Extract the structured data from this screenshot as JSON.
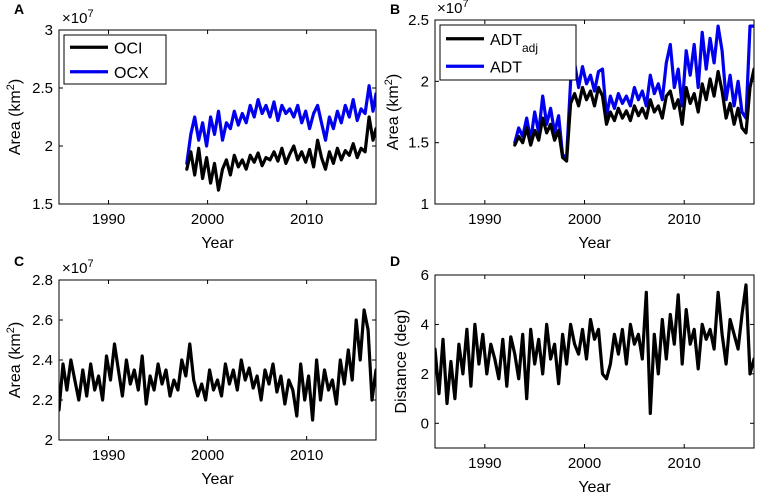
{
  "chart_data": [
    {
      "panel": "A",
      "type": "line",
      "xlabel": "Year",
      "ylabel": "Area (km",
      "ylabel_sup": "2",
      "ylabel_close": ")",
      "multiplier": "×10",
      "multiplier_exp": "7",
      "xlim": [
        1985,
        2017
      ],
      "ylim": [
        1.5,
        3
      ],
      "xticks": [
        1990,
        2000,
        2010
      ],
      "yticks": [
        1.5,
        2,
        2.5,
        3
      ],
      "ytick_labels": [
        "1.5",
        "2",
        "2.5",
        "3"
      ],
      "series": [
        {
          "name": "OCI",
          "color": "#000000",
          "x": [
            1997.9,
            1998.3,
            1998.7,
            1999.1,
            1999.5,
            1999.9,
            2000.3,
            2000.7,
            2001.1,
            2001.5,
            2001.9,
            2002.3,
            2002.7,
            2003.1,
            2003.5,
            2003.9,
            2004.3,
            2004.7,
            2005.1,
            2005.5,
            2005.9,
            2006.3,
            2006.7,
            2007.1,
            2007.5,
            2007.9,
            2008.3,
            2008.7,
            2009.1,
            2009.5,
            2009.9,
            2010.3,
            2010.7,
            2011.1,
            2011.5,
            2011.9,
            2012.3,
            2012.7,
            2013.1,
            2013.5,
            2013.9,
            2014.3,
            2014.7,
            2015.1,
            2015.5,
            2015.9,
            2016.3,
            2016.7,
            2017.0
          ],
          "y": [
            1.8,
            1.95,
            1.75,
            1.98,
            1.72,
            1.9,
            1.68,
            1.85,
            1.62,
            1.8,
            1.88,
            1.75,
            1.92,
            1.82,
            1.88,
            1.8,
            1.92,
            1.86,
            1.94,
            1.83,
            1.9,
            1.88,
            1.95,
            1.87,
            1.98,
            1.85,
            1.93,
            2.0,
            1.88,
            1.95,
            1.86,
            1.97,
            1.82,
            2.05,
            1.9,
            1.8,
            1.95,
            1.85,
            1.98,
            1.88,
            1.96,
            1.92,
            2.02,
            1.9,
            1.98,
            1.95,
            2.25,
            2.05,
            2.15
          ]
        },
        {
          "name": "OCX",
          "color": "#0000ee",
          "x": [
            1997.9,
            1998.3,
            1998.7,
            1999.1,
            1999.5,
            1999.9,
            2000.3,
            2000.7,
            2001.1,
            2001.5,
            2001.9,
            2002.3,
            2002.7,
            2003.1,
            2003.5,
            2003.9,
            2004.3,
            2004.7,
            2005.1,
            2005.5,
            2005.9,
            2006.3,
            2006.7,
            2007.1,
            2007.5,
            2007.9,
            2008.3,
            2008.7,
            2009.1,
            2009.5,
            2009.9,
            2010.3,
            2010.7,
            2011.1,
            2011.5,
            2011.9,
            2012.3,
            2012.7,
            2013.1,
            2013.5,
            2013.9,
            2014.3,
            2014.7,
            2015.1,
            2015.5,
            2015.9,
            2016.3,
            2016.7,
            2017.0
          ],
          "y": [
            1.85,
            2.1,
            2.25,
            2.05,
            2.2,
            2.0,
            2.25,
            2.1,
            2.3,
            2.05,
            2.2,
            2.15,
            2.3,
            2.18,
            2.28,
            2.2,
            2.35,
            2.25,
            2.4,
            2.28,
            2.35,
            2.25,
            2.38,
            2.22,
            2.35,
            2.28,
            2.32,
            2.25,
            2.35,
            2.2,
            2.3,
            2.15,
            2.28,
            2.35,
            2.2,
            2.05,
            2.25,
            2.15,
            2.3,
            2.2,
            2.35,
            2.25,
            2.4,
            2.22,
            2.32,
            2.28,
            2.52,
            2.3,
            2.45
          ]
        }
      ]
    },
    {
      "panel": "B",
      "type": "line",
      "xlabel": "Year",
      "ylabel": "Area (km",
      "ylabel_sup": "2",
      "ylabel_close": ")",
      "multiplier": "×10",
      "multiplier_exp": "7",
      "xlim": [
        1985,
        2017
      ],
      "ylim": [
        1,
        2.5
      ],
      "xticks": [
        1990,
        2000,
        2010
      ],
      "yticks": [
        1,
        1.5,
        2,
        2.5
      ],
      "ytick_labels": [
        "1",
        "1.5",
        "2",
        "2.5"
      ],
      "series": [
        {
          "name": "ADT",
          "name_sub": "adj",
          "color": "#000000",
          "x": [
            1993.0,
            1993.4,
            1993.8,
            1994.2,
            1994.6,
            1995.0,
            1995.4,
            1995.8,
            1996.2,
            1996.6,
            1997.0,
            1997.4,
            1997.8,
            1998.2,
            1998.6,
            1999.0,
            1999.4,
            1999.8,
            2000.2,
            2000.6,
            2001.0,
            2001.4,
            2001.8,
            2002.2,
            2002.6,
            2003.0,
            2003.4,
            2003.8,
            2004.2,
            2004.6,
            2005.0,
            2005.4,
            2005.8,
            2006.2,
            2006.6,
            2007.0,
            2007.4,
            2007.8,
            2008.2,
            2008.6,
            2009.0,
            2009.4,
            2009.8,
            2010.2,
            2010.6,
            2011.0,
            2011.4,
            2011.8,
            2012.2,
            2012.6,
            2013.0,
            2013.4,
            2013.8,
            2014.2,
            2014.6,
            2015.0,
            2015.4,
            2015.8,
            2016.2,
            2016.6,
            2017.0
          ],
          "y": [
            1.48,
            1.55,
            1.5,
            1.62,
            1.48,
            1.6,
            1.52,
            1.7,
            1.58,
            1.65,
            1.52,
            1.6,
            1.38,
            1.35,
            1.82,
            1.9,
            1.8,
            1.95,
            1.85,
            1.92,
            1.8,
            1.95,
            1.88,
            1.65,
            1.75,
            1.68,
            1.78,
            1.7,
            1.76,
            1.68,
            1.8,
            1.72,
            1.78,
            1.7,
            1.85,
            1.75,
            1.8,
            1.7,
            1.88,
            1.92,
            1.78,
            1.85,
            1.65,
            1.95,
            1.82,
            1.9,
            1.75,
            1.98,
            1.85,
            2.02,
            1.88,
            2.08,
            1.92,
            1.7,
            1.82,
            1.65,
            1.78,
            1.62,
            1.58,
            1.95,
            2.1
          ]
        },
        {
          "name": "ADT",
          "name_sub": "",
          "color": "#0000ee",
          "x": [
            1993.0,
            1993.4,
            1993.8,
            1994.2,
            1994.6,
            1995.0,
            1995.4,
            1995.8,
            1996.2,
            1996.6,
            1997.0,
            1997.4,
            1997.8,
            1998.2,
            1998.6,
            1999.0,
            1999.4,
            1999.8,
            2000.2,
            2000.6,
            2001.0,
            2001.4,
            2001.8,
            2002.2,
            2002.6,
            2003.0,
            2003.4,
            2003.8,
            2004.2,
            2004.6,
            2005.0,
            2005.4,
            2005.8,
            2006.2,
            2006.6,
            2007.0,
            2007.4,
            2007.8,
            2008.2,
            2008.6,
            2009.0,
            2009.4,
            2009.8,
            2010.2,
            2010.6,
            2011.0,
            2011.4,
            2011.8,
            2012.2,
            2012.6,
            2013.0,
            2013.4,
            2013.8,
            2014.2,
            2014.6,
            2015.0,
            2015.4,
            2015.8,
            2016.2,
            2016.6,
            2017.0
          ],
          "y": [
            1.5,
            1.62,
            1.55,
            1.7,
            1.52,
            1.75,
            1.58,
            1.88,
            1.65,
            1.78,
            1.58,
            1.72,
            1.4,
            1.38,
            2.0,
            2.15,
            1.95,
            2.12,
            1.98,
            2.05,
            1.92,
            2.08,
            2.1,
            1.72,
            1.88,
            1.78,
            1.9,
            1.82,
            1.88,
            1.8,
            1.95,
            1.85,
            1.92,
            1.8,
            2.05,
            1.9,
            1.98,
            1.85,
            2.15,
            2.3,
            1.95,
            2.1,
            1.8,
            2.25,
            2.05,
            2.3,
            1.95,
            2.4,
            2.1,
            2.35,
            2.15,
            2.45,
            2.25,
            1.85,
            2.05,
            1.8,
            2.0,
            1.75,
            1.7,
            2.45,
            2.45
          ]
        }
      ]
    },
    {
      "panel": "C",
      "type": "line",
      "xlabel": "Year",
      "ylabel": "Area (km",
      "ylabel_sup": "2",
      "ylabel_close": ")",
      "multiplier": "×10",
      "multiplier_exp": "7",
      "xlim": [
        1985,
        2017
      ],
      "ylim": [
        2,
        2.8
      ],
      "xticks": [
        1990,
        2000,
        2010
      ],
      "yticks": [
        2,
        2.2,
        2.4,
        2.6,
        2.8
      ],
      "ytick_labels": [
        "2",
        "2.2",
        "2.4",
        "2.6",
        "2.8"
      ],
      "series": [
        {
          "name": "Area",
          "color": "#000000",
          "x": [
            1985.0,
            1985.4,
            1985.8,
            1986.2,
            1986.6,
            1987.0,
            1987.4,
            1987.8,
            1988.2,
            1988.6,
            1989.0,
            1989.4,
            1989.8,
            1990.2,
            1990.6,
            1991.0,
            1991.4,
            1991.8,
            1992.2,
            1992.6,
            1993.0,
            1993.4,
            1993.8,
            1994.2,
            1994.6,
            1995.0,
            1995.4,
            1995.8,
            1996.2,
            1996.6,
            1997.0,
            1997.4,
            1997.8,
            1998.2,
            1998.6,
            1999.0,
            1999.4,
            1999.8,
            2000.2,
            2000.6,
            2001.0,
            2001.4,
            2001.8,
            2002.2,
            2002.6,
            2003.0,
            2003.4,
            2003.8,
            2004.2,
            2004.6,
            2005.0,
            2005.4,
            2005.8,
            2006.2,
            2006.6,
            2007.0,
            2007.4,
            2007.8,
            2008.2,
            2008.6,
            2009.0,
            2009.4,
            2009.8,
            2010.2,
            2010.6,
            2011.0,
            2011.4,
            2011.8,
            2012.2,
            2012.6,
            2013.0,
            2013.4,
            2013.8,
            2014.2,
            2014.6,
            2015.0,
            2015.4,
            2015.8,
            2016.2,
            2016.6,
            2017.0
          ],
          "y": [
            2.15,
            2.38,
            2.25,
            2.4,
            2.3,
            2.2,
            2.35,
            2.22,
            2.38,
            2.25,
            2.32,
            2.2,
            2.42,
            2.3,
            2.48,
            2.35,
            2.22,
            2.4,
            2.28,
            2.35,
            2.25,
            2.42,
            2.18,
            2.32,
            2.25,
            2.38,
            2.28,
            2.35,
            2.22,
            2.3,
            2.25,
            2.4,
            2.32,
            2.48,
            2.3,
            2.22,
            2.28,
            2.2,
            2.35,
            2.25,
            2.3,
            2.22,
            2.38,
            2.28,
            2.35,
            2.25,
            2.4,
            2.3,
            2.36,
            2.26,
            2.32,
            2.2,
            2.35,
            2.28,
            2.38,
            2.24,
            2.32,
            2.18,
            2.3,
            2.25,
            2.12,
            2.38,
            2.2,
            2.32,
            2.1,
            2.4,
            2.2,
            2.35,
            2.25,
            2.3,
            2.18,
            2.4,
            2.28,
            2.45,
            2.3,
            2.6,
            2.4,
            2.65,
            2.55,
            2.2,
            2.35
          ]
        }
      ]
    },
    {
      "panel": "D",
      "type": "line",
      "xlabel": "Year",
      "ylabel": "Distance (deg)",
      "ylabel_sup": "",
      "ylabel_close": "",
      "multiplier": "",
      "multiplier_exp": "",
      "xlim": [
        1985,
        2017
      ],
      "ylim": [
        -1,
        6
      ],
      "xticks": [
        1990,
        2000,
        2010
      ],
      "yticks": [
        0,
        2,
        4,
        6
      ],
      "ytick_labels": [
        "0",
        "2",
        "4",
        "6"
      ],
      "series": [
        {
          "name": "Distance",
          "color": "#000000",
          "x": [
            1985.0,
            1985.4,
            1985.8,
            1986.2,
            1986.6,
            1987.0,
            1987.4,
            1987.8,
            1988.2,
            1988.6,
            1989.0,
            1989.4,
            1989.8,
            1990.2,
            1990.6,
            1991.0,
            1991.4,
            1991.8,
            1992.2,
            1992.6,
            1993.0,
            1993.4,
            1993.8,
            1994.2,
            1994.6,
            1995.0,
            1995.4,
            1995.8,
            1996.2,
            1996.6,
            1997.0,
            1997.4,
            1997.8,
            1998.2,
            1998.6,
            1999.0,
            1999.4,
            1999.8,
            2000.2,
            2000.6,
            2001.0,
            2001.4,
            2001.8,
            2002.2,
            2002.6,
            2003.0,
            2003.4,
            2003.8,
            2004.2,
            2004.6,
            2005.0,
            2005.4,
            2005.8,
            2006.2,
            2006.6,
            2007.0,
            2007.4,
            2007.8,
            2008.2,
            2008.6,
            2009.0,
            2009.4,
            2009.8,
            2010.2,
            2010.6,
            2011.0,
            2011.4,
            2011.8,
            2012.2,
            2012.6,
            2013.0,
            2013.4,
            2013.8,
            2014.2,
            2014.6,
            2015.0,
            2015.4,
            2015.8,
            2016.2,
            2016.6,
            2017.0
          ],
          "y": [
            3.0,
            1.2,
            3.4,
            0.8,
            2.5,
            1.0,
            3.2,
            2.0,
            3.8,
            1.5,
            4.0,
            2.4,
            3.6,
            2.0,
            3.2,
            2.6,
            1.8,
            3.4,
            1.5,
            3.5,
            2.8,
            1.8,
            3.6,
            1.0,
            3.8,
            2.4,
            3.4,
            2.0,
            4.0,
            2.6,
            3.2,
            1.6,
            3.6,
            2.4,
            4.0,
            3.2,
            2.8,
            3.8,
            2.6,
            4.2,
            3.4,
            3.8,
            2.0,
            1.8,
            2.4,
            3.6,
            2.8,
            3.8,
            2.4,
            4.0,
            3.2,
            3.6,
            2.6,
            5.3,
            0.4,
            3.6,
            2.0,
            4.2,
            2.6,
            4.4,
            3.2,
            5.2,
            2.4,
            4.6,
            3.2,
            3.8,
            2.2,
            4.0,
            3.4,
            3.8,
            3.0,
            5.3,
            3.6,
            2.4,
            4.2,
            3.6,
            3.0,
            4.4,
            5.6,
            2.0,
            2.6
          ]
        }
      ]
    }
  ]
}
